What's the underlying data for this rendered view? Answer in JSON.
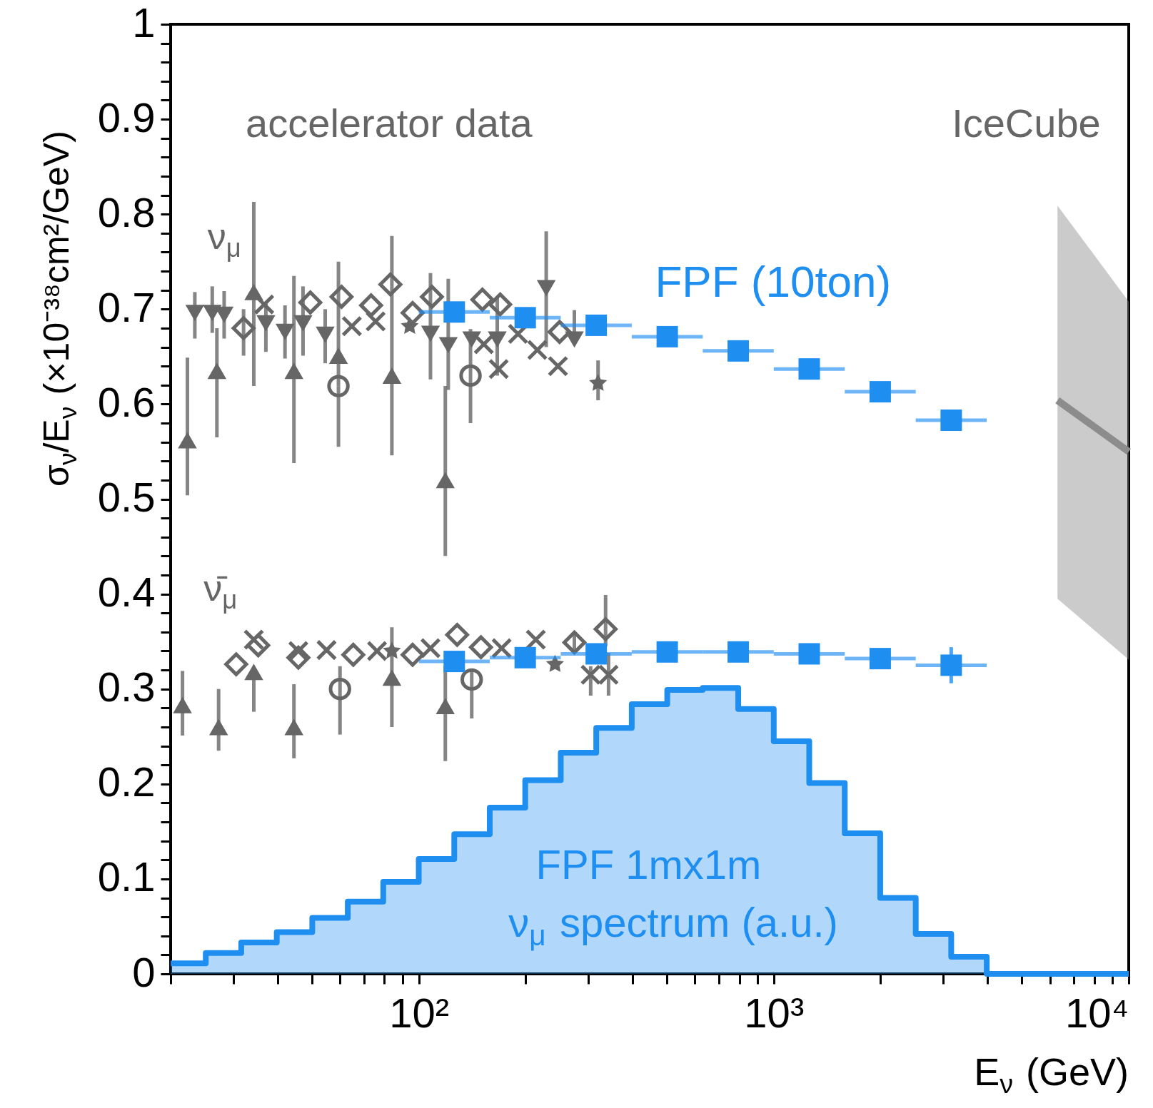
{
  "chart_data": {
    "type": "scatter",
    "xlabel": "E$_{ν}$ (GeV)",
    "ylabel": "σ$_{ν}$/E$_{ν}$ (×10⁻³⁸cm²/GeV)",
    "log": "x",
    "xlim": [
      20,
      10000
    ],
    "ylim": [
      0,
      1
    ],
    "xticks": [
      {
        "value": 20,
        "label": null
      },
      {
        "value": 30,
        "label": null
      },
      {
        "value": 40,
        "label": null
      },
      {
        "value": 50,
        "label": null
      },
      {
        "value": 60,
        "label": null
      },
      {
        "value": 70,
        "label": null
      },
      {
        "value": 80,
        "label": null
      },
      {
        "value": 90,
        "label": null
      },
      {
        "value": 100,
        "label": "10²"
      },
      {
        "value": 200,
        "label": null
      },
      {
        "value": 300,
        "label": null
      },
      {
        "value": 400,
        "label": null
      },
      {
        "value": 500,
        "label": null
      },
      {
        "value": 600,
        "label": null
      },
      {
        "value": 700,
        "label": null
      },
      {
        "value": 800,
        "label": null
      },
      {
        "value": 900,
        "label": null
      },
      {
        "value": 1000,
        "label": "10³"
      },
      {
        "value": 2000,
        "label": null
      },
      {
        "value": 3000,
        "label": null
      },
      {
        "value": 4000,
        "label": null
      },
      {
        "value": 5000,
        "label": null
      },
      {
        "value": 6000,
        "label": null
      },
      {
        "value": 7000,
        "label": null
      },
      {
        "value": 8000,
        "label": null
      },
      {
        "value": 9000,
        "label": null
      },
      {
        "value": 10000,
        "label": "10⁴"
      }
    ],
    "yticks": [
      0,
      {
        "value": 0.02,
        "label": null
      },
      {
        "value": 0.04,
        "label": null
      },
      {
        "value": 0.06,
        "label": null
      },
      {
        "value": 0.08,
        "label": null
      },
      0.1,
      {
        "value": 0.12,
        "label": null
      },
      {
        "value": 0.14,
        "label": null
      },
      {
        "value": 0.16,
        "label": null
      },
      {
        "value": 0.18,
        "label": null
      },
      0.2,
      {
        "value": 0.22,
        "label": null
      },
      {
        "value": 0.24,
        "label": null
      },
      {
        "value": 0.26,
        "label": null
      },
      {
        "value": 0.28,
        "label": null
      },
      0.3,
      {
        "value": 0.32,
        "label": null
      },
      {
        "value": 0.34,
        "label": null
      },
      {
        "value": 0.36,
        "label": null
      },
      {
        "value": 0.38,
        "label": null
      },
      0.4,
      {
        "value": 0.42,
        "label": null
      },
      {
        "value": 0.44,
        "label": null
      },
      {
        "value": 0.46,
        "label": null
      },
      {
        "value": 0.48,
        "label": null
      },
      0.5,
      {
        "value": 0.52,
        "label": null
      },
      {
        "value": 0.54,
        "label": null
      },
      {
        "value": 0.56,
        "label": null
      },
      {
        "value": 0.58,
        "label": null
      },
      0.6,
      {
        "value": 0.62,
        "label": null
      },
      {
        "value": 0.64,
        "label": null
      },
      {
        "value": 0.66,
        "label": null
      },
      {
        "value": 0.68,
        "label": null
      },
      0.7,
      {
        "value": 0.72,
        "label": null
      },
      {
        "value": 0.74,
        "label": null
      },
      {
        "value": 0.76,
        "label": null
      },
      {
        "value": 0.78,
        "label": null
      },
      0.8,
      {
        "value": 0.82,
        "label": null
      },
      {
        "value": 0.84,
        "label": null
      },
      {
        "value": 0.86,
        "label": null
      },
      {
        "value": 0.88,
        "label": null
      },
      0.9,
      {
        "value": 0.92,
        "label": null
      },
      {
        "value": 0.94,
        "label": null
      },
      {
        "value": 0.96,
        "label": null
      },
      {
        "value": 0.98,
        "label": null
      },
      1
    ],
    "annotations": [
      "accelerator data",
      "IceCube",
      "ν$_{μ}$",
      "ν̄$_{μ}$",
      "FPF (10ton)",
      "FPF 1mx1m",
      "ν$_{μ}$ spectrum (a.u.)"
    ],
    "series": [
      {
        "type": "histogram",
        "color": "#1f8ef1",
        "bins": [
          20,
          25.12,
          31.62,
          39.81,
          50.12,
          63.1,
          79.43,
          100,
          125.9,
          158.5,
          199.5,
          251.2,
          316.2,
          398.1,
          501.2,
          631,
          794.3,
          1000,
          1259,
          1585,
          1995,
          2512,
          3162,
          3981,
          5012,
          6310,
          7943,
          10000
        ],
        "values": [
          0.011,
          0.022,
          0.033,
          0.044,
          0.059,
          0.076,
          0.097,
          0.121,
          0.147,
          0.175,
          0.204,
          0.233,
          0.259,
          0.284,
          0.299,
          0.301,
          0.279,
          0.245,
          0.201,
          0.148,
          0.08,
          0.042,
          0.018,
          0,
          0,
          0,
          0
        ]
      },
      {
        "type": "line",
        "color": "#8c8c8c",
        "x": [
          6300,
          10000
        ],
        "values": [
          0.604,
          0.55
        ],
        "lower": [
          0.395,
          0.331
        ],
        "upper": [
          0.809,
          0.708
        ]
      },
      {
        "marker": "triangle-down",
        "color": "#666666",
        "x": [
          23.4,
          26.2,
          28.3,
          37.1,
          42.0,
          47.2,
          54.5,
          107.9,
          121.1,
          141,
          166.4,
          228.6,
          274.4
        ],
        "values": [
          0.696,
          0.696,
          0.694,
          0.685,
          0.676,
          0.685,
          0.673,
          0.674,
          0.662,
          0.668,
          0.668,
          0.722,
          0.668
        ],
        "errors": [
          [
            0.669,
            0.718
          ],
          [
            0.675,
            0.724
          ],
          [
            0.669,
            0.719
          ],
          [
            0.655,
            0.707
          ],
          [
            0.648,
            0.704
          ],
          [
            0.651,
            0.724
          ],
          [
            0.643,
            0.7
          ],
          [
            0.626,
            0.738
          ],
          [
            0.615,
            0.732
          ],
          null,
          [
            0.63,
            0.713
          ],
          [
            0.66,
            0.782
          ],
          [
            0.663,
            0.699
          ]
        ]
      },
      {
        "marker": "triangle",
        "color": "#666666",
        "x": [
          22.3,
          27.0,
          34.3,
          44.5,
          59.4,
          84.0,
          118.8,
          21.6,
          27.3,
          34.3,
          44.5,
          84.0,
          118.8
        ],
        "values": [
          0.562,
          0.635,
          0.718,
          0.635,
          0.651,
          0.63,
          0.52,
          0.283,
          0.26,
          0.318,
          0.26,
          0.312,
          0.282
        ],
        "errors": [
          [
            0.504,
            0.649
          ],
          [
            0.565,
            0.68
          ],
          [
            0.619,
            0.813
          ],
          [
            0.538,
            0.735
          ],
          [
            0.619,
            0.75
          ],
          [
            0.546,
            0.777
          ],
          [
            0.44,
            0.619
          ],
          [
            0.251,
            0.319
          ],
          [
            0.235,
            0.3
          ],
          [
            0.276,
            0.318
          ],
          [
            0.227,
            0.305
          ],
          [
            0.26,
            0.365
          ],
          [
            0.224,
            0.324
          ]
        ]
      },
      {
        "marker": "circle",
        "color": "#666666",
        "x": [
          59.4,
          139.9,
          60.0,
          141
        ],
        "values": [
          0.619,
          0.63,
          0.3,
          0.31
        ],
        "errors": [
          [
            0.555,
            0.619
          ],
          [
            0.58,
            0.679
          ],
          [
            0.252,
            0.324
          ],
          [
            0.269,
            0.321
          ]
        ]
      },
      {
        "marker": "cross",
        "color": "#666666",
        "x": [
          36.7,
          64.8,
          75.6,
          152.5,
          190.4,
          215.8,
          246.7,
          168,
          34.3,
          45.8,
          55.0,
          76.3,
          107.9,
          171.2,
          213.7,
          342.5,
          305
        ],
        "values": [
          0.705,
          0.682,
          0.687,
          0.663,
          0.674,
          0.657,
          0.64,
          0.637,
          0.352,
          0.34,
          0.341,
          0.34,
          0.343,
          0.343,
          0.352,
          0.315,
          0.315
        ],
        "errors": [
          null,
          null,
          null,
          null,
          null,
          null,
          null,
          null,
          null,
          null,
          null,
          null,
          null,
          null,
          null,
          [
            0.293,
            0.338
          ],
          [
            0.293,
            0.324
          ]
        ]
      },
      {
        "marker": "diamond",
        "color": "#666666",
        "x": [
          32.1,
          49.5,
          60.6,
          73.4,
          83.2,
          96.1,
          108.9,
          151.1,
          169.6,
          249.3,
          30.6,
          35.3,
          45.8,
          65.4,
          96.1,
          128.3,
          149.7,
          274.4,
          336
        ],
        "values": [
          0.68,
          0.707,
          0.713,
          0.704,
          0.726,
          0.696,
          0.713,
          0.71,
          0.705,
          0.676,
          0.326,
          0.346,
          0.333,
          0.336,
          0.336,
          0.357,
          0.344,
          0.349,
          0.363
        ],
        "errors": [
          [
            0.651,
            0.7
          ],
          null,
          null,
          null,
          null,
          null,
          null,
          null,
          null,
          null,
          null,
          null,
          null,
          null,
          null,
          null,
          null,
          [
            0.341,
            0.358
          ],
          [
            0.345,
            0.399
          ]
        ]
      },
      {
        "marker": "star",
        "color": "#666666",
        "x": [
          320,
          94.3,
          84.0,
          242
        ],
        "values": [
          0.622,
          0.682,
          0.34,
          0.326
        ],
        "errors": [
          [
            0.604,
            0.646
          ],
          null,
          null,
          null
        ]
      },
      {
        "marker": "square",
        "color": "#1f8ef1",
        "x": [
          125.9,
          199.5,
          316.2,
          501.2,
          794.3,
          1259,
          1995,
          3162
        ],
        "values": [
          0.697,
          0.691,
          0.683,
          0.671,
          0.656,
          0.637,
          0.613,
          0.583
        ],
        "xerrors": [
          [
            100,
            158.5
          ],
          [
            158.5,
            251.2
          ],
          [
            251.2,
            398.1
          ],
          [
            398.1,
            631
          ],
          [
            631,
            1000
          ],
          [
            1000,
            1585
          ],
          [
            1585,
            2512
          ],
          [
            2512,
            3981
          ]
        ]
      },
      {
        "marker": "square",
        "color": "#1f8ef1",
        "x": [
          125.9,
          199.5,
          316.2,
          501.2,
          794.3,
          1259,
          1995,
          3162
        ],
        "values": [
          0.329,
          0.333,
          0.337,
          0.339,
          0.339,
          0.337,
          0.332,
          0.325
        ],
        "errors": [
          null,
          null,
          null,
          null,
          null,
          null,
          null,
          0.019
        ],
        "xerrors": [
          [
            100,
            158.5
          ],
          [
            158.5,
            251.2
          ],
          [
            251.2,
            398.1
          ],
          [
            398.1,
            631
          ],
          [
            631,
            1000
          ],
          [
            1000,
            1585
          ],
          [
            1585,
            2512
          ],
          [
            2512,
            3981
          ]
        ]
      }
    ]
  }
}
